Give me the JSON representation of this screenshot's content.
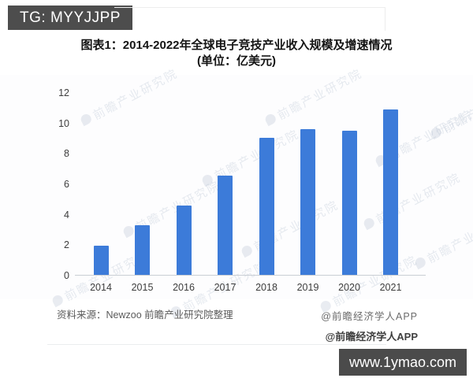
{
  "page": {
    "top_badge": "TG: MYYJJPP",
    "bottom_badge": "www.1ymao.com"
  },
  "chart": {
    "title_line1": "图表1：2014-2022年全球电子竞技产业收入规模及增速情况",
    "title_line2": "(单位：亿美元)",
    "source": "资料来源：Newzoo 前瞻产业研究院整理",
    "credit_top": "@前瞻经济学人APP",
    "credit_bottom": "@前瞻经济学人APP",
    "watermark_text": "前瞻产业研究院",
    "bar_color": "#3c7bd9"
  },
  "chart_data": {
    "type": "bar",
    "title": "图表1：2014-2022年全球电子竞技产业收入规模及增速情况 (单位：亿美元)",
    "categories": [
      "2014",
      "2015",
      "2016",
      "2017",
      "2018",
      "2019",
      "2020",
      "2021"
    ],
    "values": [
      1.9,
      3.25,
      4.55,
      6.5,
      9.0,
      9.55,
      9.45,
      10.85
    ],
    "xlabel": "",
    "ylabel": "",
    "ylim": [
      0,
      12
    ],
    "yticks": [
      0,
      2,
      4,
      6,
      8,
      10,
      12
    ],
    "grid": false,
    "legend": false,
    "bar_color": "#3c7bd9"
  }
}
